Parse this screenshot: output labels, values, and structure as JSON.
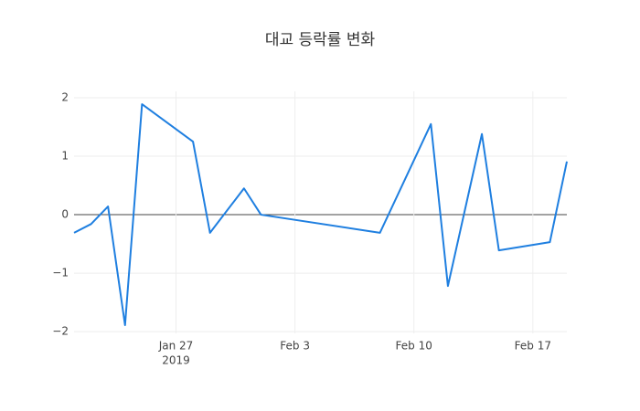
{
  "chart_data": {
    "type": "line",
    "title": "대교 등락률 변화",
    "x": [
      "2019-01-21",
      "2019-01-22",
      "2019-01-23",
      "2019-01-24",
      "2019-01-25",
      "2019-01-28",
      "2019-01-29",
      "2019-01-31",
      "2019-02-01",
      "2019-02-08",
      "2019-02-11",
      "2019-02-12",
      "2019-02-14",
      "2019-02-15",
      "2019-02-18",
      "2019-02-19"
    ],
    "series": [
      {
        "color": "#1f7fe0",
        "values": [
          -0.31,
          -0.16,
          0.14,
          -1.89,
          1.89,
          1.25,
          -0.31,
          0.45,
          0,
          -0.31,
          1.55,
          -1.22,
          1.38,
          -0.61,
          -0.47,
          0.91
        ]
      }
    ],
    "xlim": [
      "2019-01-21",
      "2019-02-19"
    ],
    "xticks": [
      {
        "value": "2019-01-27",
        "label": [
          "Jan 27",
          "2019"
        ]
      },
      {
        "value": "2019-02-03",
        "label": [
          "Feb 3"
        ]
      },
      {
        "value": "2019-02-10",
        "label": [
          "Feb 10"
        ]
      },
      {
        "value": "2019-02-17",
        "label": [
          "Feb 17"
        ]
      }
    ],
    "ylim": [
      -2.03,
      2.11
    ],
    "yticks": [
      {
        "value": -2,
        "label": "−2"
      },
      {
        "value": -1,
        "label": "−1"
      },
      0,
      1,
      2
    ],
    "grid": true,
    "zeroline": true
  }
}
